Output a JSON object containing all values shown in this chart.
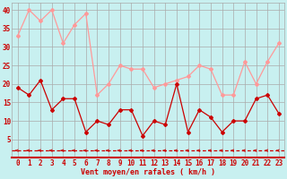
{
  "x": [
    0,
    1,
    2,
    3,
    4,
    5,
    6,
    7,
    8,
    9,
    10,
    11,
    12,
    13,
    14,
    15,
    16,
    17,
    18,
    19,
    20,
    21,
    22,
    23
  ],
  "wind_mean": [
    19,
    17,
    21,
    13,
    16,
    16,
    7,
    10,
    9,
    13,
    13,
    6,
    10,
    9,
    20,
    7,
    13,
    11,
    7,
    10,
    10,
    16,
    17,
    12
  ],
  "wind_gust": [
    33,
    40,
    37,
    40,
    31,
    36,
    39,
    17,
    20,
    25,
    24,
    24,
    19,
    20,
    21,
    22,
    25,
    24,
    17,
    17,
    26,
    20,
    26,
    31
  ],
  "dashed_y": 2.0,
  "bg_color": "#c8f0f0",
  "grid_color": "#aaaaaa",
  "line_mean_color": "#cc0000",
  "line_gust_color": "#ff9999",
  "dashed_color": "#cc0000",
  "xlabel": "Vent moyen/en rafales ( km/h )",
  "yticks": [
    5,
    10,
    15,
    20,
    25,
    30,
    35,
    40
  ],
  "xticks": [
    0,
    1,
    2,
    3,
    4,
    5,
    6,
    7,
    8,
    9,
    10,
    11,
    12,
    13,
    14,
    15,
    16,
    17,
    18,
    19,
    20,
    21,
    22,
    23
  ],
  "ylim": [
    0,
    42
  ],
  "xlim": [
    -0.5,
    23.5
  ],
  "tick_fontsize": 5.5,
  "xlabel_fontsize": 6.0
}
